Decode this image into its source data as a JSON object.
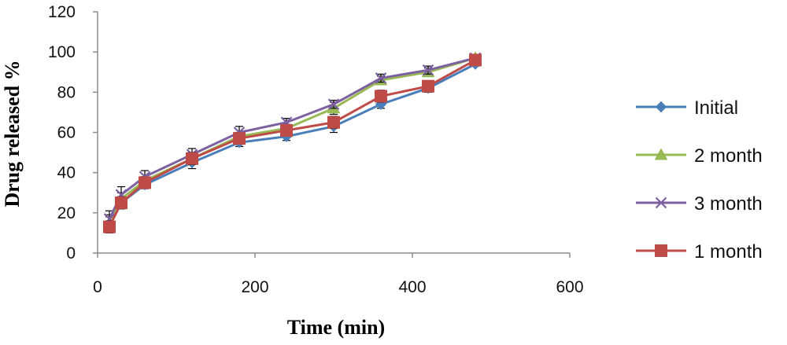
{
  "chart_data": {
    "type": "line",
    "title": "",
    "xlabel": "Time (min)",
    "ylabel": "Drug released %",
    "xlim": [
      0,
      600
    ],
    "ylim": [
      0,
      120
    ],
    "xticks": [
      "0",
      "200",
      "400",
      "600"
    ],
    "yticks": [
      "0",
      "20",
      "40",
      "60",
      "80",
      "100",
      "120"
    ],
    "grid": false,
    "legend_position": "right",
    "x": [
      15,
      30,
      60,
      120,
      180,
      240,
      300,
      360,
      420,
      480
    ],
    "series": [
      {
        "name": "Initial",
        "color": "#4a7ebb",
        "marker": "diamond",
        "values": [
          14,
          25,
          34,
          45,
          55,
          58,
          63,
          74,
          82,
          94
        ],
        "errors": [
          4,
          3,
          2,
          3,
          2,
          2,
          3,
          2,
          2,
          1
        ]
      },
      {
        "name": "2 month",
        "color": "#98b954",
        "marker": "triangle",
        "values": [
          15,
          27,
          36,
          47,
          58,
          62,
          72,
          86,
          90,
          97
        ],
        "errors": [
          4,
          3,
          2,
          3,
          2,
          2,
          3,
          2,
          2,
          1
        ]
      },
      {
        "name": "3 month",
        "color": "#7d60a0",
        "marker": "x",
        "values": [
          17,
          29,
          38,
          49,
          60,
          65,
          74,
          87,
          91,
          97
        ],
        "errors": [
          4,
          4,
          3,
          3,
          3,
          2,
          2,
          2,
          2,
          1
        ]
      },
      {
        "name": "1 month",
        "color": "#be4b48",
        "marker": "square",
        "values": [
          13,
          25,
          35,
          47,
          57,
          61,
          65,
          78,
          83,
          96
        ],
        "errors": [
          3,
          3,
          2,
          3,
          2,
          2,
          3,
          3,
          2,
          1
        ]
      }
    ]
  }
}
